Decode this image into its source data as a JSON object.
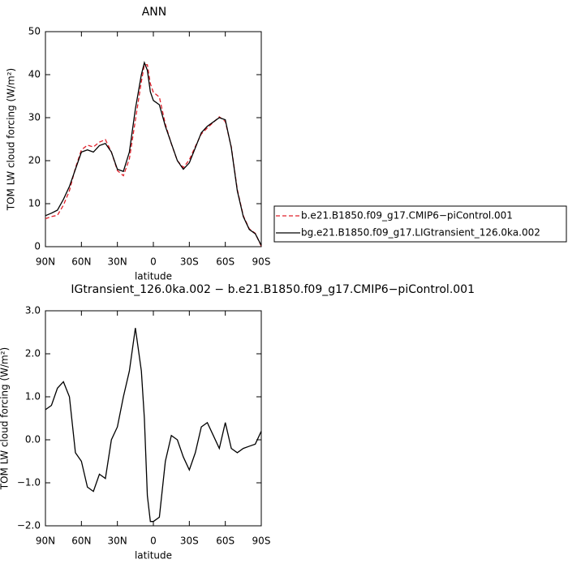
{
  "chart_data": [
    {
      "type": "line",
      "title": "ANN",
      "xlabel": "latitude",
      "ylabel": "TOM LW cloud forcing (W/m²)",
      "x": [
        90,
        85,
        80,
        75,
        70,
        65,
        60,
        55,
        50,
        45,
        40,
        35,
        30,
        25,
        20,
        15,
        10,
        7.5,
        5,
        2.5,
        0,
        -5,
        -10,
        -15,
        -20,
        -25,
        -30,
        -35,
        -40,
        -45,
        -50,
        -55,
        -60,
        -65,
        -70,
        -75,
        -80,
        -85,
        -90
      ],
      "xlim": [
        90,
        -90
      ],
      "xticks": [
        {
          "value": 90,
          "label": "90N"
        },
        {
          "value": 60,
          "label": "60N"
        },
        {
          "value": 30,
          "label": "30N"
        },
        0,
        {
          "value": -30,
          "label": "30S"
        },
        {
          "value": -60,
          "label": "60S"
        },
        {
          "value": -90,
          "label": "90S"
        }
      ],
      "ylim": [
        0,
        50
      ],
      "yticks": [
        0,
        10,
        20,
        30,
        40,
        50
      ],
      "legend": "right",
      "series": [
        {
          "name": "b.e21.B1850.f09_g17.CMIP6−piControl.001",
          "color": "#e0202a",
          "linestyle": "dashed",
          "values": [
            6.5,
            7.0,
            7.3,
            9.65,
            13,
            18.3,
            22.5,
            23.6,
            23.2,
            24.3,
            24.9,
            22,
            17.7,
            16.5,
            20.4,
            29.4,
            38.4,
            42.3,
            42.3,
            37.9,
            35.9,
            34.8,
            28.5,
            23.9,
            20,
            18.4,
            20.2,
            23.3,
            26.2,
            27.6,
            28.9,
            30.2,
            29.1,
            23.2,
            13.3,
            7.2,
            4.15,
            3.1,
            0.1
          ]
        },
        {
          "name": "bg.e21.B1850.f09_g17.LIGtransient_126.0ka.002",
          "color": "#000000",
          "linestyle": "solid",
          "values": [
            7.2,
            7.8,
            8.5,
            11,
            14,
            18,
            22,
            22.5,
            22,
            23.5,
            24,
            22,
            18,
            17.5,
            22,
            32,
            40,
            42.8,
            41,
            36,
            34,
            33,
            28,
            24,
            20,
            18,
            19.5,
            23,
            26.5,
            28,
            29,
            30,
            29.5,
            23,
            13,
            7,
            4,
            3,
            0.3
          ]
        }
      ]
    },
    {
      "type": "line",
      "title": "IGtransient_126.0ka.002 − b.e21.B1850.f09_g17.CMIP6−piControl.001",
      "xlabel": "latitude",
      "ylabel": "TOM LW cloud forcing (W/m²)",
      "x": [
        90,
        85,
        80,
        75,
        70,
        65,
        60,
        55,
        50,
        45,
        40,
        35,
        30,
        25,
        20,
        15,
        10,
        7.5,
        5,
        2.5,
        0,
        -5,
        -10,
        -15,
        -20,
        -25,
        -30,
        -35,
        -40,
        -45,
        -50,
        -55,
        -60,
        -65,
        -70,
        -75,
        -80,
        -85,
        -90
      ],
      "xlim": [
        90,
        -90
      ],
      "xticks": [
        {
          "value": 90,
          "label": "90N"
        },
        {
          "value": 60,
          "label": "60N"
        },
        {
          "value": 30,
          "label": "30N"
        },
        0,
        {
          "value": -30,
          "label": "30S"
        },
        {
          "value": -60,
          "label": "60S"
        },
        {
          "value": -90,
          "label": "90S"
        }
      ],
      "ylim": [
        -2,
        3
      ],
      "yticks": [
        {
          "value": -2,
          "label": "−2.0"
        },
        {
          "value": -1,
          "label": "−1.0"
        },
        {
          "value": 0,
          "label": "0.0"
        },
        {
          "value": 1,
          "label": "1.0"
        },
        {
          "value": 2,
          "label": "2.0"
        },
        {
          "value": 3,
          "label": "3.0"
        }
      ],
      "series": [
        {
          "color": "#000000",
          "linestyle": "solid",
          "values": [
            0.7,
            0.8,
            1.2,
            1.35,
            1.0,
            -0.3,
            -0.5,
            -1.1,
            -1.2,
            -0.8,
            -0.9,
            0,
            0.3,
            1.0,
            1.6,
            2.6,
            1.6,
            0.5,
            -1.3,
            -1.9,
            -1.9,
            -1.8,
            -0.5,
            0.1,
            0,
            -0.4,
            -0.7,
            -0.3,
            0.3,
            0.4,
            0.1,
            -0.2,
            0.4,
            -0.2,
            -0.3,
            -0.2,
            -0.15,
            -0.1,
            0.2
          ]
        }
      ]
    }
  ]
}
